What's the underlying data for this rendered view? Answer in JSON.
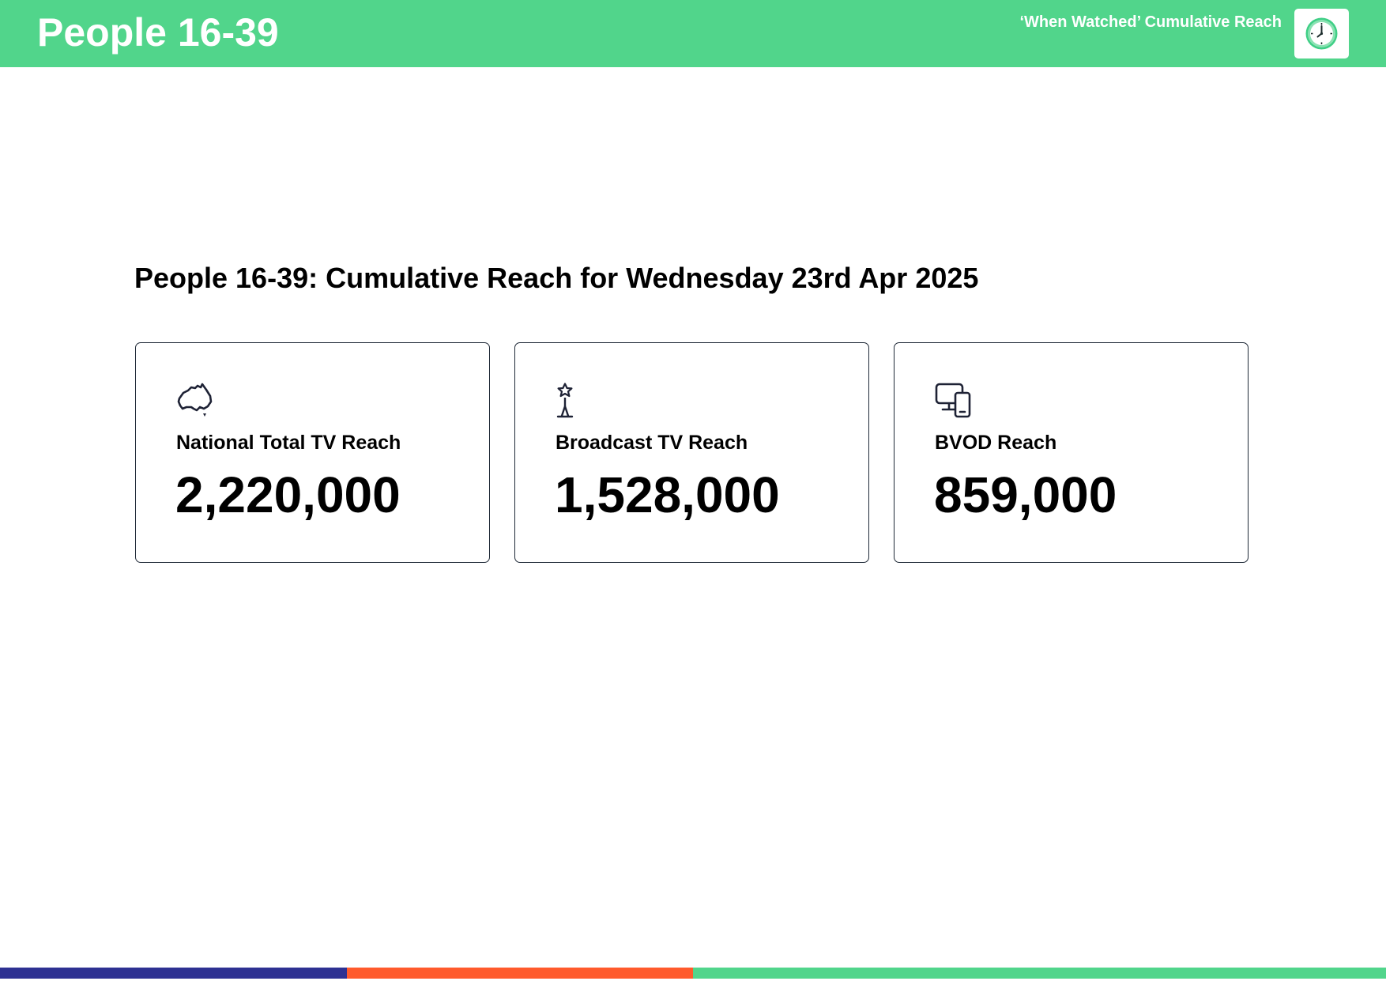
{
  "header": {
    "title": "People 16-39",
    "subtitle": "‘When Watched’ Cumulative Reach",
    "logo_icon": "clock-icon"
  },
  "main": {
    "title": "People 16-39: Cumulative Reach for Wednesday 23rd Apr 2025"
  },
  "cards": [
    {
      "icon": "australia-map-icon",
      "label": "National Total TV Reach",
      "value": "2,220,000"
    },
    {
      "icon": "broadcast-tower-icon",
      "label": "Broadcast TV Reach",
      "value": "1,528,000"
    },
    {
      "icon": "devices-icon",
      "label": "BVOD Reach",
      "value": "859,000"
    }
  ],
  "colors": {
    "header_bg": "#51d58b",
    "header_text": "#ffffff",
    "card_border": "#1f2937",
    "icon_stroke": "#1e2235",
    "bar_navy": "#2e3192",
    "bar_orange": "#ff5a2c",
    "bar_green": "#51d58b"
  }
}
